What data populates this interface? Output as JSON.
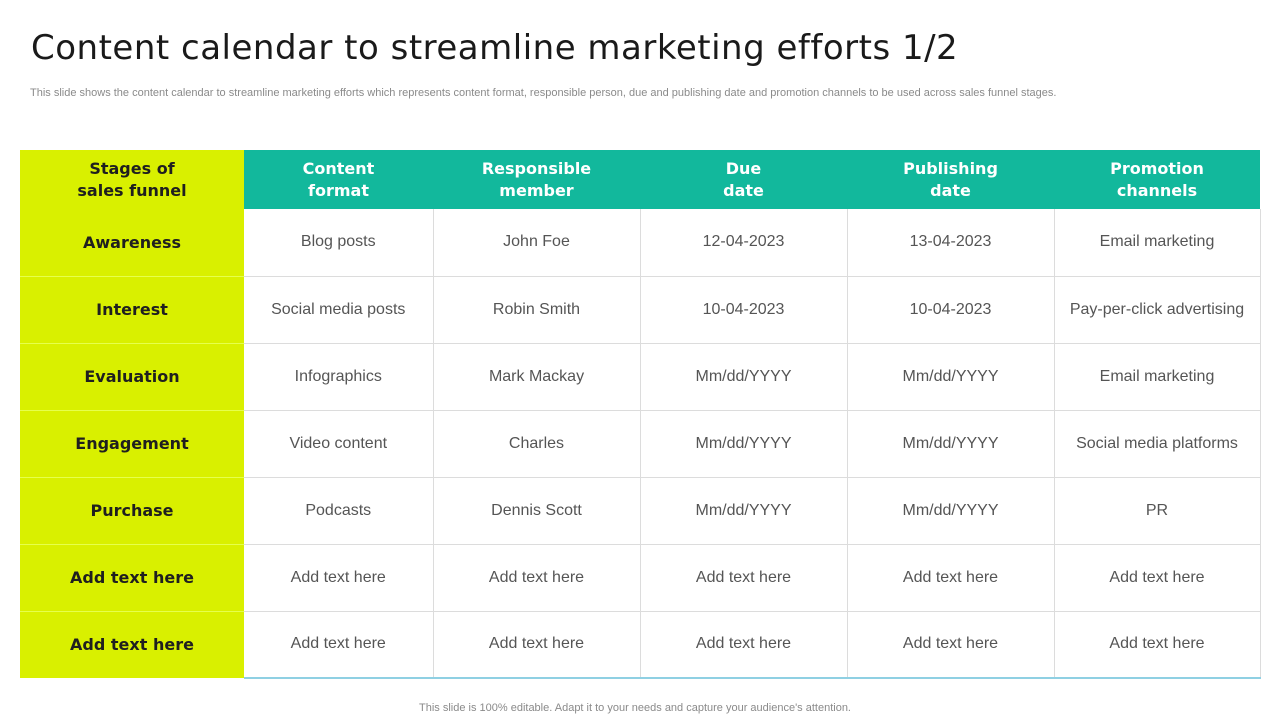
{
  "slide": {
    "title": "Content calendar to streamline marketing efforts 1/2",
    "subtitle": "This slide shows the content calendar to streamline marketing efforts which represents content format, responsible person, due and publishing date and promotion channels to be used across sales funnel stages.",
    "footer": "This slide is 100% editable. Adapt it to your needs and capture your audience's attention."
  },
  "colors": {
    "header_teal": "#12b89c",
    "stage_lime": "#d9f000"
  },
  "table": {
    "headers": [
      "Stages of\nsales funnel",
      "Content\nformat",
      "Responsible\nmember",
      "Due\ndate",
      "Publishing\ndate",
      "Promotion\nchannels"
    ],
    "rows": [
      [
        "Awareness",
        "Blog posts",
        "John Foe",
        "12-04-2023",
        "13-04-2023",
        "Email marketing"
      ],
      [
        "Interest",
        "Social media posts",
        "Robin Smith",
        "10-04-2023",
        "10-04-2023",
        "Pay-per-click advertising"
      ],
      [
        "Evaluation",
        "Infographics",
        "Mark Mackay",
        "Mm/dd/YYYY",
        "Mm/dd/YYYY",
        "Email marketing"
      ],
      [
        "Engagement",
        "Video content",
        "Charles",
        "Mm/dd/YYYY",
        "Mm/dd/YYYY",
        "Social media platforms"
      ],
      [
        "Purchase",
        "Podcasts",
        "Dennis Scott",
        "Mm/dd/YYYY",
        "Mm/dd/YYYY",
        "PR"
      ],
      [
        "Add text here",
        "Add text here",
        "Add text here",
        "Add text here",
        "Add text here",
        "Add text here"
      ],
      [
        "Add text here",
        "Add text here",
        "Add text here",
        "Add text here",
        "Add text here",
        "Add text here"
      ]
    ]
  }
}
